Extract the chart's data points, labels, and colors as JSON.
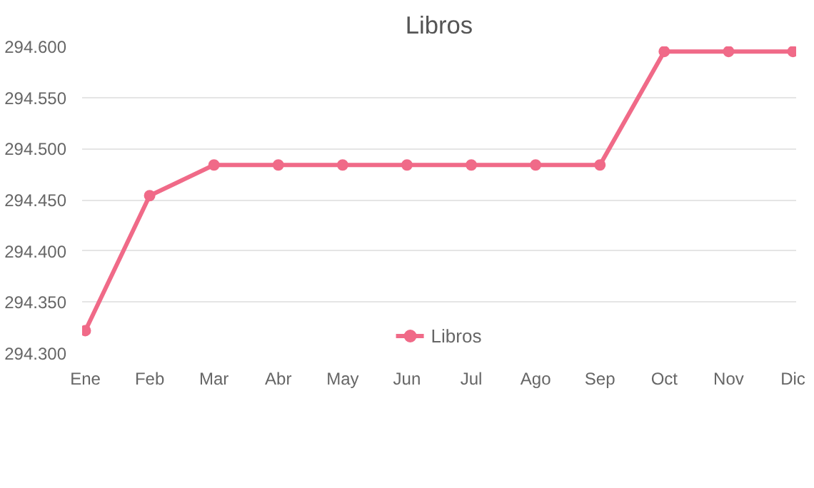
{
  "chart_data": {
    "type": "line",
    "title": "Libros",
    "categories": [
      "Ene",
      "Feb",
      "Mar",
      "Abr",
      "May",
      "Jun",
      "Jul",
      "Ago",
      "Sep",
      "Oct",
      "Nov",
      "Dic"
    ],
    "series": [
      {
        "name": "Libros",
        "color": "#f06a88",
        "values": [
          294322,
          294454,
          294484,
          294484,
          294484,
          294484,
          294484,
          294484,
          294484,
          294595,
          294595,
          294595
        ]
      }
    ],
    "ylim": [
      294300,
      294600
    ],
    "yticks": [
      {
        "value": 294300,
        "label": "294.300"
      },
      {
        "value": 294350,
        "label": "294.350"
      },
      {
        "value": 294400,
        "label": "294.400"
      },
      {
        "value": 294450,
        "label": "294.450"
      },
      {
        "value": 294500,
        "label": "294.500"
      },
      {
        "value": 294550,
        "label": "294.550"
      },
      {
        "value": 294600,
        "label": "294.600"
      }
    ],
    "grid": "y",
    "legend": "bottom",
    "marker": "circle",
    "line_style": "solid"
  }
}
